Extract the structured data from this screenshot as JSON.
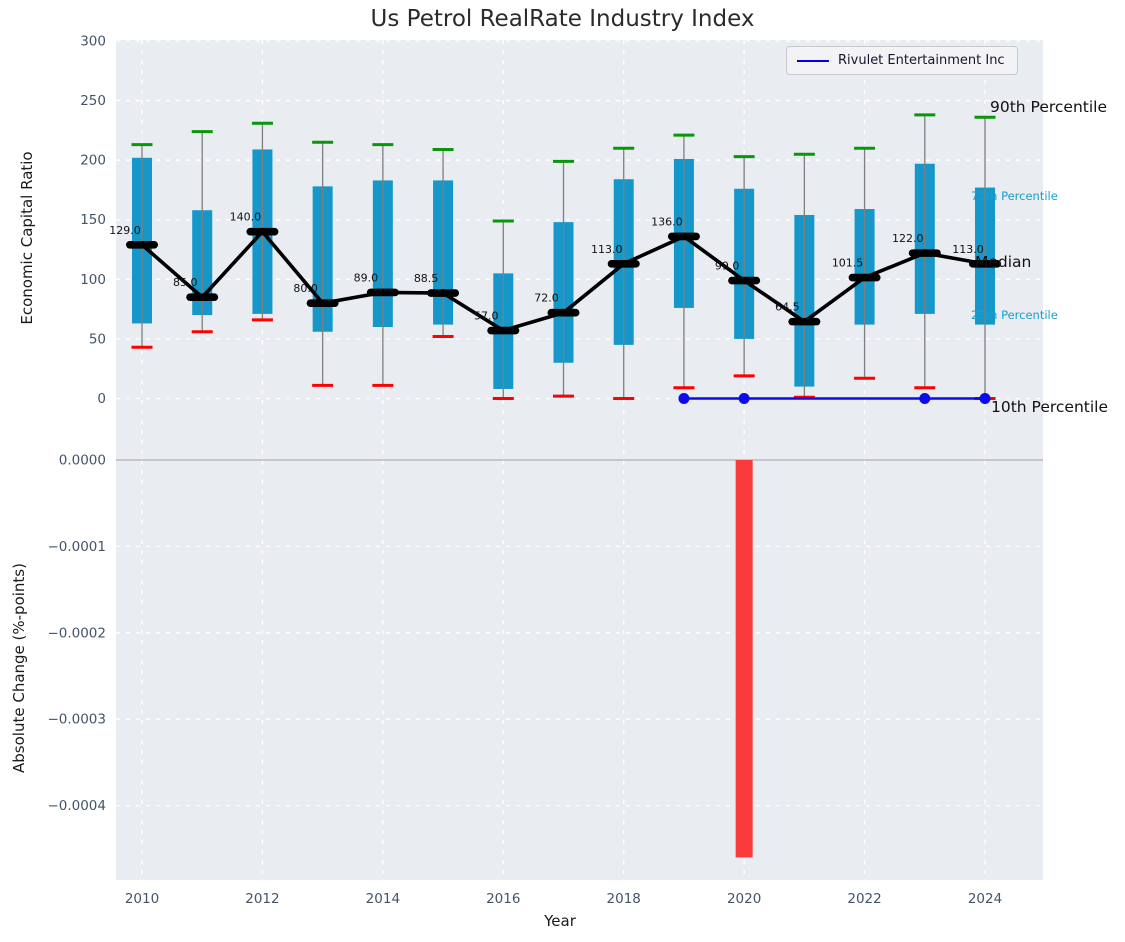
{
  "title": "Us Petrol RealRate Industry Index",
  "legend": {
    "label": "Rivulet Entertainment Inc"
  },
  "axes": {
    "top": {
      "ylabel": "Economic Capital Ratio",
      "ytick_values": [
        0,
        50,
        100,
        150,
        200,
        250,
        300
      ],
      "ytick_labels": [
        "0",
        "50",
        "100",
        "150",
        "200",
        "250",
        "300"
      ]
    },
    "bottom": {
      "ylabel": "Absolute Change (%-points)",
      "ytick_values": [
        0,
        -0.0001,
        -0.0002,
        -0.0003,
        -0.0004
      ],
      "ytick_labels": [
        "0.0000",
        "−0.0001",
        "−0.0002",
        "−0.0003",
        "−0.0004"
      ]
    },
    "x": {
      "label": "Year",
      "tick_values": [
        2010,
        2012,
        2014,
        2016,
        2018,
        2020,
        2022,
        2024
      ],
      "tick_labels": [
        "2010",
        "2012",
        "2014",
        "2016",
        "2018",
        "2020",
        "2022",
        "2024"
      ]
    }
  },
  "annotations": {
    "p90": "90th Percentile",
    "p75": "75th Percentile",
    "median": "Median",
    "p25": "25th Percentile",
    "p10": "10th Percentile"
  },
  "chart_data": [
    {
      "type": "box-whisker-percentiles",
      "title": "Us Petrol RealRate Industry Index",
      "ylabel": "Economic Capital Ratio",
      "ylim": [
        -31,
        300
      ],
      "grid": true,
      "years": [
        2010,
        2011,
        2012,
        2013,
        2014,
        2015,
        2016,
        2017,
        2018,
        2019,
        2020,
        2021,
        2022,
        2023,
        2024
      ],
      "median": [
        129.0,
        85.0,
        140.0,
        80.0,
        89.0,
        88.5,
        57.0,
        72.0,
        113.0,
        136.0,
        99.0,
        64.5,
        101.5,
        122.0,
        113.0
      ],
      "median_labels": [
        "129.0",
        "85.0",
        "140.0",
        "80.0",
        "89.0",
        "88.5",
        "57.0",
        "72.0",
        "113.0",
        "136.0",
        "99.0",
        "64.5",
        "101.5",
        "122.0",
        "113.0"
      ],
      "p75": [
        202,
        158,
        209,
        178,
        183,
        183,
        105,
        148,
        184,
        201,
        176,
        154,
        159,
        197,
        177
      ],
      "p25": [
        63,
        70,
        71,
        56,
        60,
        62,
        8,
        30,
        45,
        76,
        50,
        10,
        62,
        71,
        62
      ],
      "p90": [
        213,
        224,
        231,
        215,
        213,
        209,
        149,
        199,
        210,
        221,
        203,
        205,
        210,
        238,
        236
      ],
      "p10": [
        43,
        56,
        66,
        11,
        11,
        52,
        0,
        2,
        0,
        9,
        19,
        1,
        17,
        9,
        0
      ]
    },
    {
      "type": "line",
      "name": "Rivulet Entertainment Inc",
      "x": [
        2019,
        2020,
        2021,
        2022,
        2023,
        2024
      ],
      "y": [
        0,
        0,
        0,
        0,
        0,
        0
      ],
      "marker_x": [
        2019,
        2020,
        2023,
        2024
      ]
    },
    {
      "type": "bar",
      "ylabel": "Absolute Change (%-points)",
      "ylim": [
        -0.000487,
        2.9e-05
      ],
      "categories": [
        2020
      ],
      "values": [
        -0.00046
      ],
      "xlabel": "Year"
    }
  ],
  "colors": {
    "plot_bg": "#e9edf1",
    "grid": "#ffffff",
    "box": "#1697c9",
    "whisker": "#7f7f7f",
    "cap_p90": "#0a960a",
    "cap_p10": "#fe0000",
    "median": "#000000",
    "company_line": "#0b0bee",
    "bar": "#fb3b3b",
    "zero_line": "#b8babd",
    "tick_text": "#44546a",
    "median_label_text": "#111111"
  }
}
